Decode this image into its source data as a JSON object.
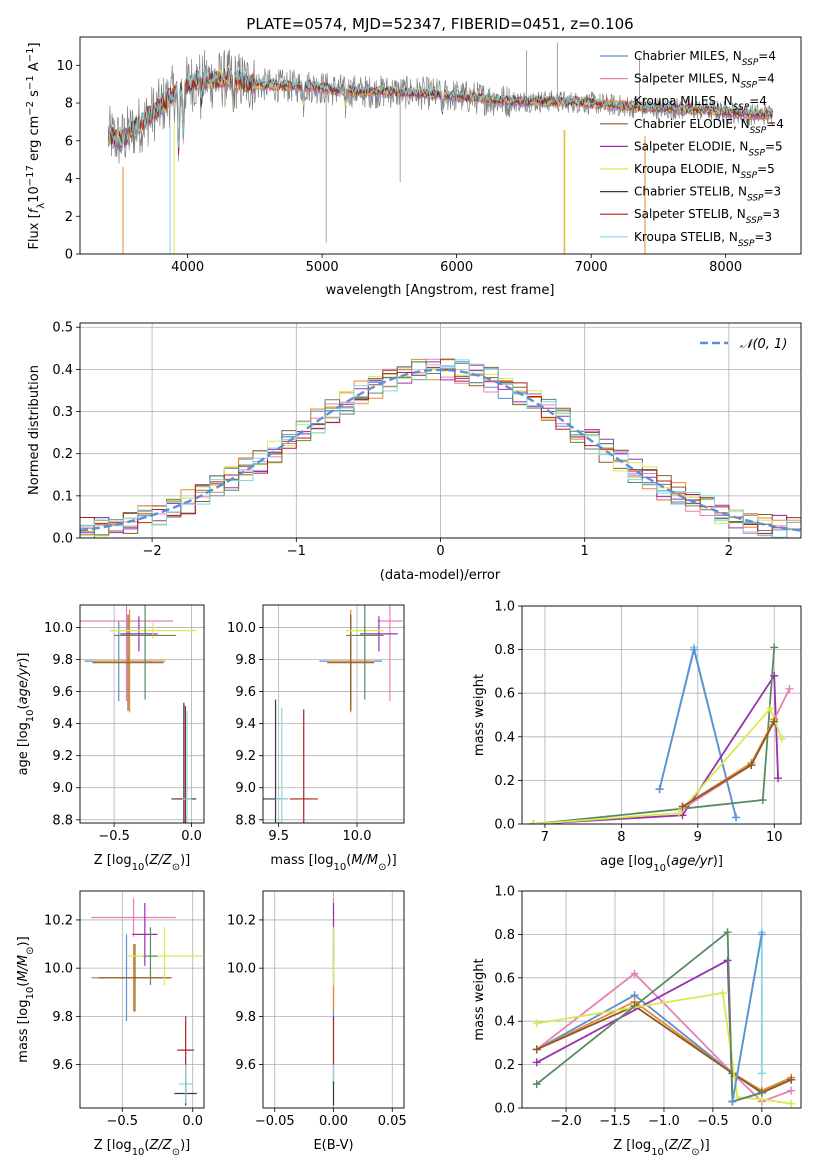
{
  "figure_title": "PLATE=0574, MJD=52347, FIBERID=0451, z=0.106",
  "colors": {
    "Chabrier MILES": "#5b8fd6",
    "Salpeter MILES": "#e880b8",
    "Kroupa MILES": "#e88a30",
    "Chabrier ELODIE": "#8a5a2a",
    "Salpeter ELODIE": "#9a30b0",
    "Kroupa ELODIE": "#d8ea50",
    "Chabrier STELIB": "#3a3a3a",
    "Salpeter STELIB": "#b02020",
    "Kroupa STELIB": "#80d8e0",
    "Data": "#808080",
    "Chabrier ELODIE alt": "#5a8a60"
  },
  "chart_data": [
    {
      "id": "spectrum",
      "type": "line",
      "xlabel": "wavelength [Angstrom, rest frame]",
      "ylabel": "Flux [f_λ 10^-17 erg cm^-2 s^-1 A^-1]",
      "xlim": [
        3200,
        8560
      ],
      "ylim": [
        0,
        11.5
      ],
      "xticks": [
        4000,
        5000,
        6000,
        7000,
        8000
      ],
      "yticks": [
        0,
        2,
        4,
        6,
        8,
        10
      ],
      "grid": false,
      "legend_position": "top-right",
      "series": [
        {
          "name": "Chabrier MILES, N_SSP=4",
          "color_key": "Chabrier MILES"
        },
        {
          "name": "Salpeter MILES, N_SSP=4",
          "color_key": "Salpeter MILES"
        },
        {
          "name": "Kroupa MILES, N_SSP=4",
          "color_key": "Kroupa MILES"
        },
        {
          "name": "Chabrier ELODIE, N_SSP=4",
          "color_key": "Chabrier ELODIE"
        },
        {
          "name": "Salpeter ELODIE, N_SSP=5",
          "color_key": "Salpeter ELODIE"
        },
        {
          "name": "Kroupa ELODIE, N_SSP=5",
          "color_key": "Kroupa ELODIE"
        },
        {
          "name": "Chabrier STELIB, N_SSP=3",
          "color_key": "Chabrier STELIB"
        },
        {
          "name": "Salpeter STELIB, N_SSP=3",
          "color_key": "Salpeter STELIB"
        },
        {
          "name": "Kroupa STELIB, N_SSP=3",
          "color_key": "Kroupa STELIB"
        }
      ],
      "continuum_x": [
        3410,
        3500,
        3600,
        3700,
        3800,
        3900,
        4000,
        4100,
        4200,
        4300,
        4500,
        4700,
        4900,
        5100,
        5300,
        5500,
        5800,
        6100,
        6400,
        6700,
        7000,
        7300,
        7600,
        7900,
        8200,
        8350
      ],
      "continuum_y": [
        6.3,
        6.0,
        6.6,
        7.2,
        7.8,
        8.5,
        9.0,
        9.3,
        9.2,
        9.3,
        9.0,
        8.9,
        8.9,
        8.7,
        8.6,
        8.6,
        8.5,
        8.3,
        8.1,
        8.1,
        8.0,
        7.8,
        7.7,
        7.6,
        7.4,
        7.4
      ]
    },
    {
      "id": "residuals",
      "type": "line",
      "xlabel": "(data-model)/error",
      "ylabel": "Normed distribution",
      "xlim": [
        -2.5,
        2.5
      ],
      "ylim": [
        0,
        0.51
      ],
      "xticks": [
        -2,
        -1,
        0,
        1,
        2
      ],
      "yticks": [
        0.0,
        0.1,
        0.2,
        0.3,
        0.4,
        0.5
      ],
      "grid": true,
      "legend_position": "top-right",
      "reference_label": "𝒩(0, 1)",
      "bin_width": 0.1
    },
    {
      "id": "age_vs_Z",
      "type": "scatter",
      "xlabel": "Z [log10(Z/Z☉)]",
      "ylabel": "age  [log10(age/yr)]",
      "xlim": [
        -0.72,
        0.08
      ],
      "ylim": [
        8.78,
        10.14
      ],
      "xticks": [
        -0.5,
        0.0
      ],
      "yticks": [
        8.8,
        9.0,
        9.2,
        9.4,
        9.6,
        9.8,
        10.0
      ],
      "grid": true,
      "points": [
        {
          "x": -0.47,
          "xerr": 0.22,
          "y": 9.79,
          "yerr": 0.25,
          "color_key": "Chabrier MILES"
        },
        {
          "x": -0.42,
          "xerr": 0.3,
          "y": 10.04,
          "yerr": 0.5,
          "color_key": "Salpeter MILES"
        },
        {
          "x": -0.4,
          "xerr": 0.23,
          "y": 9.79,
          "yerr": 0.32,
          "color_key": "Kroupa MILES"
        },
        {
          "x": -0.41,
          "xerr": 0.23,
          "y": 9.78,
          "yerr": 0.3,
          "color_key": "Chabrier ELODIE"
        },
        {
          "x": -0.34,
          "xerr": 0.12,
          "y": 9.96,
          "yerr": 0.11,
          "color_key": "Salpeter ELODIE"
        },
        {
          "x": -0.25,
          "xerr": 0.28,
          "y": 9.98,
          "yerr": 0.05,
          "color_key": "Kroupa ELODIE"
        },
        {
          "x": -0.3,
          "xerr": 0.2,
          "y": 9.95,
          "yerr": 0.4,
          "color_key": "Chabrier ELODIE alt"
        },
        {
          "x": -0.05,
          "xerr": 0.08,
          "y": 8.93,
          "yerr": 0.6,
          "color_key": "Chabrier STELIB"
        },
        {
          "x": -0.04,
          "xerr": 0.04,
          "y": 8.93,
          "yerr": 0.58,
          "color_key": "Salpeter STELIB"
        },
        {
          "x": -0.03,
          "xerr": 0.03,
          "y": 8.93,
          "yerr": 0.55,
          "color_key": "Kroupa STELIB"
        }
      ]
    },
    {
      "id": "age_vs_mass",
      "type": "scatter",
      "xlabel": "mass [log10(M/M☉)]",
      "ylabel": "",
      "xlim": [
        9.4,
        10.3
      ],
      "ylim": [
        8.78,
        10.14
      ],
      "xticks": [
        9.5,
        10.0
      ],
      "yticks": [
        8.8,
        9.0,
        9.2,
        9.4,
        9.6,
        9.8,
        10.0
      ],
      "grid": true,
      "points": [
        {
          "x": 9.96,
          "xerr": 0.2,
          "y": 9.79,
          "yerr": 0.25,
          "color_key": "Chabrier MILES"
        },
        {
          "x": 10.21,
          "xerr": 0.08,
          "y": 10.04,
          "yerr": 0.5,
          "color_key": "Salpeter MILES"
        },
        {
          "x": 9.96,
          "xerr": 0.15,
          "y": 9.79,
          "yerr": 0.32,
          "color_key": "Kroupa MILES"
        },
        {
          "x": 9.96,
          "xerr": 0.15,
          "y": 9.78,
          "yerr": 0.3,
          "color_key": "Chabrier ELODIE"
        },
        {
          "x": 10.14,
          "xerr": 0.12,
          "y": 9.96,
          "yerr": 0.11,
          "color_key": "Salpeter ELODIE"
        },
        {
          "x": 10.05,
          "xerr": 0.12,
          "y": 9.98,
          "yerr": 0.05,
          "color_key": "Kroupa ELODIE"
        },
        {
          "x": 10.05,
          "xerr": 0.12,
          "y": 9.95,
          "yerr": 0.4,
          "color_key": "Chabrier ELODIE alt"
        },
        {
          "x": 9.48,
          "xerr": 0.08,
          "y": 8.93,
          "yerr": 0.62,
          "color_key": "Chabrier STELIB"
        },
        {
          "x": 9.66,
          "xerr": 0.09,
          "y": 8.93,
          "yerr": 0.56,
          "color_key": "Salpeter STELIB"
        },
        {
          "x": 9.52,
          "xerr": 0.04,
          "y": 8.93,
          "yerr": 0.57,
          "color_key": "Kroupa STELIB"
        }
      ]
    },
    {
      "id": "mass_weight_vs_age",
      "type": "line",
      "xlabel": "age  [log10(age/yr)]",
      "ylabel": "mass weight",
      "xlim": [
        6.7,
        10.35
      ],
      "ylim": [
        0,
        1.0
      ],
      "xticks": [
        7,
        8,
        9,
        10
      ],
      "yticks": [
        0.0,
        0.2,
        0.4,
        0.6,
        0.8,
        1.0
      ],
      "grid": true,
      "series": [
        {
          "color_key": "Kroupa STELIB",
          "x": [
            8.5,
            8.95,
            9.5
          ],
          "y": [
            0.16,
            0.81,
            0.03
          ]
        },
        {
          "color_key": "Chabrier MILES",
          "x": [
            8.5,
            8.95,
            9.5
          ],
          "y": [
            0.16,
            0.8,
            0.03
          ]
        },
        {
          "color_key": "Salpeter ELODIE",
          "x": [
            6.85,
            8.8,
            10.0,
            10.05
          ],
          "y": [
            0.0,
            0.04,
            0.68,
            0.21
          ]
        },
        {
          "color_key": "Chabrier ELODIE alt",
          "x": [
            6.85,
            8.8,
            9.85,
            10.0
          ],
          "y": [
            0.0,
            0.07,
            0.11,
            0.81
          ]
        },
        {
          "color_key": "Salpeter MILES",
          "x": [
            8.8,
            9.7,
            10.2
          ],
          "y": [
            0.07,
            0.27,
            0.62
          ]
        },
        {
          "color_key": "Kroupa MILES",
          "x": [
            8.8,
            9.7,
            10.0
          ],
          "y": [
            0.08,
            0.28,
            0.48
          ]
        },
        {
          "color_key": "Kroupa ELODIE",
          "x": [
            6.85,
            8.75,
            9.95,
            10.1
          ],
          "y": [
            0.0,
            0.05,
            0.53,
            0.39
          ]
        },
        {
          "color_key": "Chabrier ELODIE",
          "x": [
            8.8,
            9.7,
            10.0
          ],
          "y": [
            0.08,
            0.27,
            0.47
          ]
        }
      ]
    },
    {
      "id": "mass_vs_Z",
      "type": "scatter",
      "xlabel": "Z [log10(Z/Z☉)]",
      "ylabel": "mass [log10(M/M☉)]",
      "xlim": [
        -0.8,
        0.08
      ],
      "ylim": [
        9.42,
        10.32
      ],
      "xticks": [
        -0.5,
        0.0
      ],
      "yticks": [
        9.6,
        9.8,
        10.0,
        10.2
      ],
      "grid": true,
      "points": [
        {
          "x": -0.47,
          "xerr": 0.25,
          "y": 9.96,
          "yerr": 0.18,
          "color_key": "Chabrier MILES"
        },
        {
          "x": -0.42,
          "xerr": 0.3,
          "y": 10.21,
          "yerr": 0.08,
          "color_key": "Salpeter MILES"
        },
        {
          "x": -0.42,
          "xerr": 0.26,
          "y": 9.96,
          "yerr": 0.14,
          "color_key": "Kroupa MILES"
        },
        {
          "x": -0.41,
          "xerr": 0.26,
          "y": 9.96,
          "yerr": 0.14,
          "color_key": "Chabrier ELODIE"
        },
        {
          "x": -0.34,
          "xerr": 0.09,
          "y": 10.14,
          "yerr": 0.13,
          "color_key": "Salpeter ELODIE"
        },
        {
          "x": -0.2,
          "xerr": 0.27,
          "y": 10.05,
          "yerr": 0.12,
          "color_key": "Kroupa ELODIE"
        },
        {
          "x": -0.3,
          "xerr": 0.05,
          "y": 10.05,
          "yerr": 0.12,
          "color_key": "Chabrier ELODIE alt"
        },
        {
          "x": -0.05,
          "xerr": 0.08,
          "y": 9.48,
          "yerr": 0.05,
          "color_key": "Chabrier STELIB"
        },
        {
          "x": -0.05,
          "xerr": 0.06,
          "y": 9.66,
          "yerr": 0.14,
          "color_key": "Salpeter STELIB"
        },
        {
          "x": -0.05,
          "xerr": 0.05,
          "y": 9.52,
          "yerr": 0.08,
          "color_key": "Kroupa STELIB"
        }
      ]
    },
    {
      "id": "mass_vs_ebv",
      "type": "scatter",
      "xlabel": "E(B-V)",
      "ylabel": "",
      "xlim": [
        -0.06,
        0.06
      ],
      "ylim": [
        9.42,
        10.32
      ],
      "xticks": [
        -0.05,
        0.0,
        0.05
      ],
      "yticks": [
        9.6,
        9.8,
        10.0,
        10.2
      ],
      "grid": true,
      "points": [
        {
          "x": 0.0,
          "y": 9.96,
          "yerr": 0.18,
          "color_key": "Chabrier MILES"
        },
        {
          "x": 0.0,
          "y": 10.21,
          "yerr": 0.08,
          "color_key": "Salpeter MILES"
        },
        {
          "x": 0.0,
          "y": 9.96,
          "yerr": 0.14,
          "color_key": "Kroupa MILES"
        },
        {
          "x": 0.0,
          "y": 10.14,
          "yerr": 0.13,
          "color_key": "Salpeter ELODIE"
        },
        {
          "x": 0.0,
          "y": 10.05,
          "yerr": 0.12,
          "color_key": "Kroupa ELODIE"
        },
        {
          "x": 0.0,
          "y": 9.66,
          "yerr": 0.14,
          "color_key": "Salpeter STELIB"
        },
        {
          "x": 0.0,
          "y": 9.52,
          "yerr": 0.08,
          "color_key": "Kroupa STELIB"
        },
        {
          "x": 0.0,
          "y": 9.48,
          "yerr": 0.05,
          "color_key": "Chabrier STELIB"
        }
      ]
    },
    {
      "id": "mass_weight_vs_Z",
      "type": "line",
      "xlabel": "Z [log10(Z/Z☉)]",
      "ylabel": "mass weight",
      "xlim": [
        -2.45,
        0.4
      ],
      "ylim": [
        0,
        1.0
      ],
      "xticks": [
        -2.0,
        -1.5,
        -1.0,
        -0.5,
        0.0
      ],
      "yticks": [
        0.0,
        0.2,
        0.4,
        0.6,
        0.8,
        1.0
      ],
      "grid": true,
      "series": [
        {
          "color_key": "Chabrier MILES",
          "x": [
            -2.3,
            -1.3,
            -0.3,
            0.0,
            0.3
          ],
          "y": [
            0.27,
            0.52,
            0.16,
            0.08,
            0.13
          ]
        },
        {
          "color_key": "Salpeter MILES",
          "x": [
            -2.3,
            -1.3,
            -0.3,
            0.0,
            0.3
          ],
          "y": [
            0.27,
            0.62,
            0.16,
            0.03,
            0.08
          ]
        },
        {
          "color_key": "Kroupa MILES",
          "x": [
            -2.3,
            -1.3,
            -0.3,
            0.0,
            0.3
          ],
          "y": [
            0.27,
            0.49,
            0.16,
            0.08,
            0.14
          ]
        },
        {
          "color_key": "Chabrier ELODIE",
          "x": [
            -2.3,
            -1.3,
            -0.3,
            0.0,
            0.3
          ],
          "y": [
            0.27,
            0.47,
            0.16,
            0.07,
            0.13
          ]
        },
        {
          "color_key": "Salpeter ELODIE",
          "x": [
            -2.3,
            -0.35,
            -0.3,
            0.0
          ],
          "y": [
            0.21,
            0.68,
            0.03,
            0.07
          ]
        },
        {
          "color_key": "Kroupa ELODIE",
          "x": [
            -2.3,
            -0.4,
            -0.25,
            0.0,
            0.3
          ],
          "y": [
            0.39,
            0.53,
            0.05,
            0.04,
            0.02
          ]
        },
        {
          "color_key": "Chabrier ELODIE alt",
          "x": [
            -2.3,
            -0.35,
            -0.3,
            0.0
          ],
          "y": [
            0.11,
            0.81,
            0.03,
            0.07
          ]
        },
        {
          "color_key": "Kroupa STELIB",
          "x": [
            -0.3,
            0.0,
            0.0
          ],
          "y": [
            0.03,
            0.81,
            0.16
          ]
        },
        {
          "color_key": "Chabrier MILES",
          "x": [
            -0.3,
            0.0
          ],
          "y": [
            0.03,
            0.8
          ]
        }
      ]
    }
  ]
}
